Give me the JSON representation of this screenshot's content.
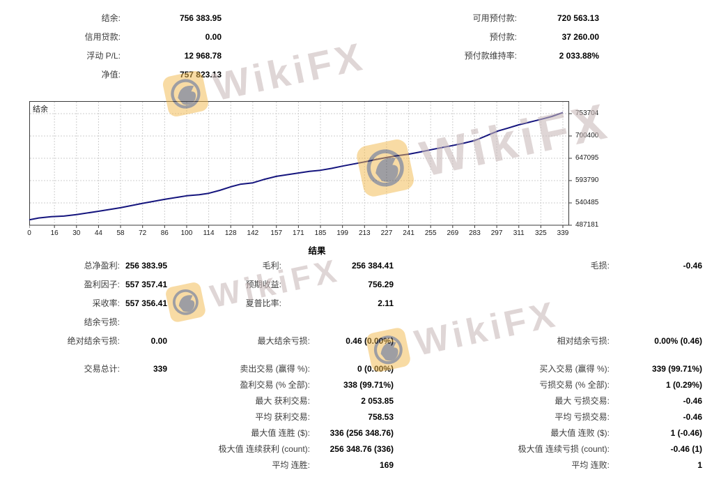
{
  "watermark": {
    "text": "WikiFX",
    "logo_color": "#f2b94b",
    "emblem_color": "#3f3f4a",
    "text_color": "#c9b9b9"
  },
  "stats_left": {
    "rows": [
      {
        "label": "结余:",
        "value": "756 383.95"
      },
      {
        "label": "信用贷款:",
        "value": "0.00"
      },
      {
        "label": "浮动 P/L:",
        "value": "12 968.78"
      },
      {
        "label": "净值:",
        "value": "757 823.13"
      }
    ]
  },
  "stats_right": {
    "rows": [
      {
        "label": "可用预付款:",
        "value": "720 563.13"
      },
      {
        "label": "预付款:",
        "value": "37 260.00"
      },
      {
        "label": "预付款维持率:",
        "value": "2 033.88%"
      }
    ]
  },
  "chart_data": {
    "type": "line",
    "title": "结余",
    "xlabel": "",
    "ylabel": "",
    "xlim": [
      0,
      339
    ],
    "ylim": [
      487181,
      753704
    ],
    "x_ticks": [
      0,
      16,
      30,
      44,
      58,
      72,
      86,
      100,
      114,
      128,
      142,
      157,
      171,
      185,
      199,
      213,
      227,
      241,
      255,
      269,
      283,
      297,
      311,
      325,
      339
    ],
    "y_ticks": [
      753704,
      700400,
      647095,
      593790,
      540485,
      487181
    ],
    "grid": "dashed",
    "legend_position": "top-left-inside",
    "series": [
      {
        "name": "结余",
        "color": "#14147d",
        "points": [
          [
            0,
            500000
          ],
          [
            6,
            504500
          ],
          [
            14,
            507500
          ],
          [
            22,
            509000
          ],
          [
            30,
            512500
          ],
          [
            44,
            520500
          ],
          [
            58,
            529000
          ],
          [
            72,
            539500
          ],
          [
            86,
            549000
          ],
          [
            100,
            557500
          ],
          [
            108,
            560000
          ],
          [
            114,
            563500
          ],
          [
            121,
            570500
          ],
          [
            128,
            579000
          ],
          [
            134,
            585000
          ],
          [
            142,
            588500
          ],
          [
            149,
            596500
          ],
          [
            157,
            604000
          ],
          [
            164,
            608000
          ],
          [
            171,
            612000
          ],
          [
            178,
            616000
          ],
          [
            185,
            618500
          ],
          [
            192,
            623000
          ],
          [
            199,
            628500
          ],
          [
            206,
            633500
          ],
          [
            213,
            638500
          ],
          [
            220,
            644000
          ],
          [
            227,
            649000
          ],
          [
            234,
            653500
          ],
          [
            241,
            657000
          ],
          [
            248,
            662000
          ],
          [
            255,
            667500
          ],
          [
            262,
            672500
          ],
          [
            269,
            677500
          ],
          [
            276,
            683000
          ],
          [
            283,
            689500
          ],
          [
            288,
            697000
          ],
          [
            293,
            705000
          ],
          [
            298,
            712500
          ],
          [
            304,
            719000
          ],
          [
            311,
            727000
          ],
          [
            318,
            733500
          ],
          [
            325,
            740000
          ],
          [
            332,
            747000
          ],
          [
            339,
            756384
          ]
        ]
      }
    ]
  },
  "results": {
    "title": "结果",
    "col1": [
      {
        "label": "总净盈利:",
        "value": "256 383.95"
      },
      {
        "label": "盈利因子:",
        "value": "557 357.41"
      },
      {
        "label": "采收率:",
        "value": "557 356.41"
      },
      {
        "label": "结余亏损:",
        "value": ""
      },
      {
        "label": "绝对结余亏损:",
        "value": "0.00"
      },
      {
        "label": "交易总计:",
        "value": "339"
      }
    ],
    "col2": [
      {
        "label": "毛利:",
        "value": "256 384.41"
      },
      {
        "label": "预期收益:",
        "value": "756.29"
      },
      {
        "label": "夏普比率:",
        "value": "2.11"
      },
      {
        "label": "最大结余亏损:",
        "value": "0.46 (0.00%)"
      },
      {
        "label": "卖出交易 (赢得 %):",
        "value": "0 (0.00%)"
      },
      {
        "label": "盈利交易 (% 全部):",
        "value": "338 (99.71%)"
      },
      {
        "label": "最大 获利交易:",
        "value": "2 053.85"
      },
      {
        "label": "平均 获利交易:",
        "value": "758.53"
      },
      {
        "label": "最大值 连胜 ($):",
        "value": "336 (256 348.76)"
      },
      {
        "label": "极大值 连续获利 (count):",
        "value": "256 348.76 (336)"
      },
      {
        "label": "平均 连胜:",
        "value": "169"
      }
    ],
    "col3": [
      {
        "label": "毛损:",
        "value": "-0.46"
      },
      {
        "label": "相对结余亏损:",
        "value": "0.00% (0.46)"
      },
      {
        "label": "买入交易 (赢得 %):",
        "value": "339 (99.71%)"
      },
      {
        "label": "亏损交易 (% 全部):",
        "value": "1 (0.29%)"
      },
      {
        "label": "最大 亏损交易:",
        "value": "-0.46"
      },
      {
        "label": "平均 亏损交易:",
        "value": "-0.46"
      },
      {
        "label": "最大值 连败 ($):",
        "value": "1 (-0.46)"
      },
      {
        "label": "极大值 连续亏损 (count):",
        "value": "-0.46 (1)"
      },
      {
        "label": "平均 连败:",
        "value": "1"
      }
    ]
  }
}
